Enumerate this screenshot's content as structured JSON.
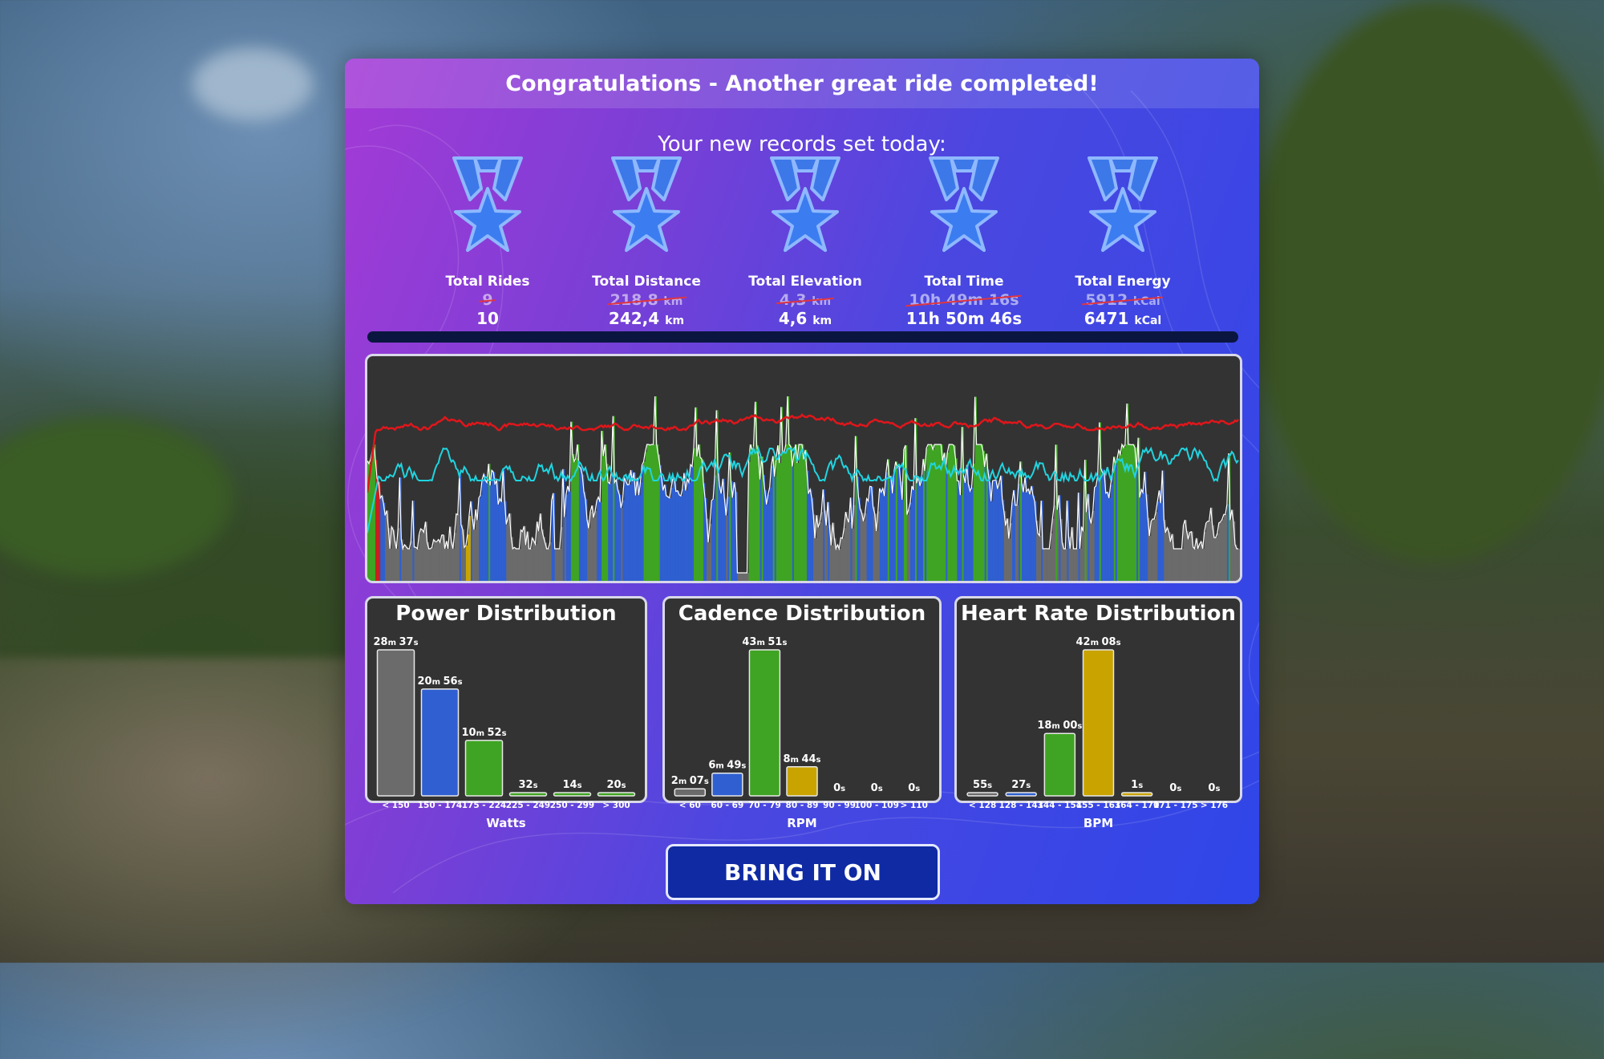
{
  "header": {
    "title": "Congratulations - Another great ride completed!"
  },
  "records": {
    "subtitle": "Your new records set today:",
    "items": [
      {
        "label": "Total Rides",
        "old": "9",
        "old_unit": "",
        "new": "10",
        "new_unit": ""
      },
      {
        "label": "Total Distance",
        "old": "218,8",
        "old_unit": "km",
        "new": "242,4",
        "new_unit": "km"
      },
      {
        "label": "Total Elevation",
        "old": "4,3",
        "old_unit": "km",
        "new": "4,6",
        "new_unit": "km"
      },
      {
        "label": "Total Time",
        "old": "10h 49m 16s",
        "old_unit": "",
        "new": "11h 50m 46s",
        "new_unit": ""
      },
      {
        "label": "Total Energy",
        "old": "5912",
        "old_unit": "kCal",
        "new": "6471",
        "new_unit": "kCal"
      }
    ]
  },
  "colors": {
    "zone_gray": "#6b6b6b",
    "zone_blue": "#2f5fd0",
    "zone_green": "#3fa423",
    "zone_yellow": "#c9a400",
    "zone_red": "#c82020",
    "heart_rate_line": "#e0161b",
    "cadence_line": "#20d4e0",
    "power_line": "#ffffff"
  },
  "chart_data": [
    {
      "type": "bar",
      "title": "Power Distribution",
      "xlabel": "Watts",
      "categories": [
        "< 150",
        "150 - 174",
        "175 - 224",
        "225 - 249",
        "250 - 299",
        "> 300"
      ],
      "values_seconds": [
        1717,
        1256,
        652,
        32,
        14,
        20
      ],
      "value_labels": [
        "28m 37s",
        "20m 56s",
        "10m 52s",
        "32s",
        "14s",
        "20s"
      ],
      "colors": [
        "#6b6b6b",
        "#2f5fd0",
        "#3fa423",
        "#3fa423",
        "#3fa423",
        "#3fa423"
      ]
    },
    {
      "type": "bar",
      "title": "Cadence Distribution",
      "xlabel": "RPM",
      "categories": [
        "< 60",
        "60 - 69",
        "70 - 79",
        "80 - 89",
        "90 - 99",
        "100 - 109",
        "> 110"
      ],
      "values_seconds": [
        127,
        409,
        2631,
        524,
        0,
        0,
        0
      ],
      "value_labels": [
        "2m 07s",
        "6m 49s",
        "43m 51s",
        "8m 44s",
        "0s",
        "0s",
        "0s"
      ],
      "colors": [
        "#6b6b6b",
        "#2f5fd0",
        "#3fa423",
        "#c9a400",
        "#c9a400",
        "#c9a400",
        "#c9a400"
      ]
    },
    {
      "type": "bar",
      "title": "Heart Rate Distribution",
      "xlabel": "BPM",
      "categories": [
        "< 128",
        "128 - 143",
        "144 - 154",
        "155 - 163",
        "164 - 170",
        "171 - 175",
        "> 176"
      ],
      "values_seconds": [
        55,
        27,
        1080,
        2528,
        1,
        0,
        0
      ],
      "value_labels": [
        "55s",
        "27s",
        "18m 00s",
        "42m 08s",
        "1s",
        "0s",
        "0s"
      ],
      "colors": [
        "#6b6b6b",
        "#2f5fd0",
        "#3fa423",
        "#c9a400",
        "#c9a400",
        "#c9a400",
        "#c9a400"
      ]
    }
  ],
  "button": {
    "label": "BRING IT ON"
  }
}
